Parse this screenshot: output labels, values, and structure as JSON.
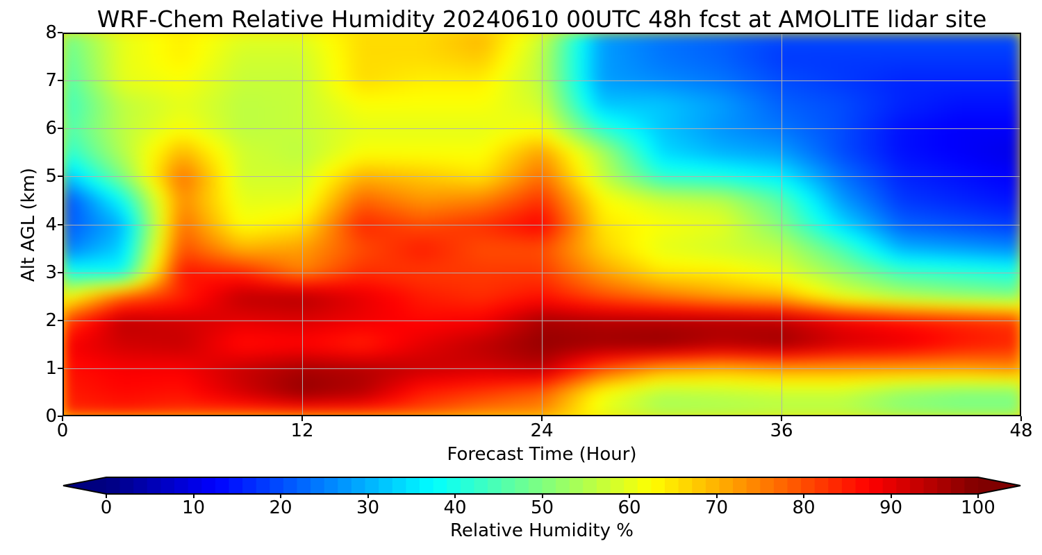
{
  "chart_data": {
    "type": "heatmap",
    "title": "WRF-Chem Relative Humidity 20240610 00UTC 48h fcst at AMOLITE lidar site",
    "xlabel": "Forecast Time (Hour)",
    "ylabel": "Alt AGL (km)",
    "xlim": [
      0,
      48
    ],
    "ylim": [
      0,
      8
    ],
    "x_ticks": [
      "0",
      "12",
      "24",
      "36",
      "48"
    ],
    "y_ticks": [
      "0",
      "1",
      "2",
      "3",
      "4",
      "5",
      "6",
      "7",
      "8"
    ],
    "grid": true,
    "colormap": "jet",
    "colorbar": {
      "label": "Relative Humidity %",
      "range": [
        0,
        100
      ],
      "ticks": [
        "0",
        "10",
        "20",
        "30",
        "40",
        "50",
        "60",
        "70",
        "80",
        "90",
        "100"
      ],
      "extend": "both",
      "orientation": "horizontal"
    },
    "x": [
      0,
      3,
      6,
      9,
      12,
      15,
      18,
      21,
      24,
      27,
      30,
      33,
      36,
      39,
      42,
      45,
      48
    ],
    "y": [
      0,
      0.5,
      1,
      1.5,
      2,
      2.5,
      3,
      3.5,
      4,
      4.5,
      5,
      5.5,
      6,
      6.5,
      7,
      7.5,
      8
    ],
    "z": [
      [
        83,
        84,
        82,
        80,
        80,
        80,
        79,
        74,
        73,
        60,
        54,
        54,
        55,
        55,
        51,
        50,
        50
      ],
      [
        85,
        87,
        86,
        92,
        98,
        95,
        85,
        82,
        78,
        62,
        55,
        56,
        57,
        57,
        52,
        50,
        50
      ],
      [
        86,
        88,
        88,
        93,
        96,
        95,
        93,
        92,
        94,
        80,
        72,
        70,
        72,
        72,
        72,
        72,
        74
      ],
      [
        88,
        92,
        93,
        86,
        87,
        84,
        90,
        94,
        98,
        97,
        98,
        95,
        97,
        92,
        90,
        86,
        84
      ],
      [
        80,
        94,
        92,
        90,
        91,
        89,
        87,
        88,
        96,
        95,
        95,
        95,
        94,
        89,
        86,
        84,
        82
      ],
      [
        60,
        78,
        84,
        94,
        95,
        90,
        85,
        83,
        86,
        80,
        76,
        72,
        70,
        60,
        55,
        52,
        50
      ],
      [
        40,
        38,
        86,
        84,
        75,
        83,
        82,
        82,
        82,
        72,
        65,
        64,
        60,
        52,
        44,
        42,
        40
      ],
      [
        24,
        33,
        80,
        70,
        72,
        80,
        85,
        80,
        80,
        67,
        60,
        58,
        56,
        45,
        30,
        28,
        26
      ],
      [
        20,
        30,
        77,
        62,
        65,
        84,
        80,
        83,
        88,
        65,
        62,
        60,
        50,
        34,
        22,
        20,
        18
      ],
      [
        18,
        38,
        74,
        60,
        60,
        78,
        73,
        75,
        83,
        63,
        58,
        56,
        46,
        28,
        18,
        16,
        14
      ],
      [
        30,
        50,
        77,
        58,
        58,
        70,
        68,
        65,
        77,
        57,
        42,
        40,
        36,
        24,
        16,
        14,
        12
      ],
      [
        40,
        55,
        70,
        58,
        56,
        62,
        62,
        62,
        72,
        55,
        34,
        30,
        28,
        20,
        14,
        12,
        10
      ],
      [
        44,
        56,
        62,
        56,
        57,
        60,
        60,
        60,
        62,
        42,
        32,
        27,
        24,
        20,
        14,
        12,
        12
      ],
      [
        42,
        56,
        60,
        56,
        57,
        62,
        62,
        62,
        58,
        32,
        32,
        28,
        22,
        20,
        16,
        14,
        14
      ],
      [
        44,
        60,
        62,
        57,
        57,
        66,
        64,
        64,
        56,
        28,
        26,
        24,
        20,
        18,
        16,
        16,
        16
      ],
      [
        46,
        60,
        64,
        58,
        58,
        66,
        66,
        68,
        56,
        28,
        24,
        22,
        18,
        18,
        18,
        18,
        18
      ],
      [
        48,
        60,
        64,
        60,
        60,
        66,
        66,
        70,
        58,
        28,
        24,
        22,
        20,
        20,
        20,
        20,
        20
      ]
    ]
  }
}
